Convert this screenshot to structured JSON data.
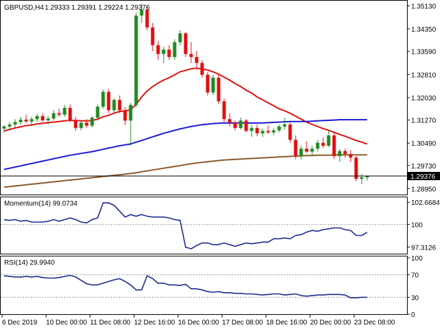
{
  "header": {
    "symbol_tf": "GBPUSD,H4",
    "ohlc": "1.29333 1.29391 1.29224 1.29376"
  },
  "price_axis": {
    "labels": [
      "1.35130",
      "1.34350",
      "1.33590",
      "1.32810",
      "1.32030",
      "1.31270",
      "1.30490",
      "1.29730",
      "1.28950"
    ],
    "current_price": "1.29376"
  },
  "momentum": {
    "title": "Momentum(14) 99.0734",
    "axis_labels": [
      "102.6684",
      "100",
      "97.3126"
    ],
    "levels": [
      100
    ]
  },
  "rsi": {
    "title": "RSI(14) 29.9940",
    "axis_labels": [
      "100",
      "70",
      "30",
      "0"
    ],
    "levels": [
      70,
      30
    ]
  },
  "time_axis": {
    "labels": [
      "6 Dec 2019",
      "10 Dec 00:00",
      "11 Dec 08:00",
      "12 Dec 16:00",
      "16 Dec 00:00",
      "17 Dec 08:00",
      "18 Dec 16:00",
      "20 Dec 00:00",
      "23 Dec 08:00"
    ]
  },
  "colors": {
    "bull": "#1f8a1f",
    "bear": "#e01010",
    "ma_fast": "#e01010",
    "ma_mid": "#1a1ad0",
    "ma_slow": "#8b5a2b",
    "indicator": "#1a2a8c",
    "price_line": "#000000"
  },
  "chart_data": [
    {
      "type": "candlestick",
      "title": "GBPUSD,H4",
      "ylim": [
        1.2875,
        1.3528
      ],
      "current_price": 1.29376,
      "candles": [
        [
          1.3098,
          1.311,
          1.3085,
          1.3105
        ],
        [
          1.3105,
          1.312,
          1.3095,
          1.3112
        ],
        [
          1.3112,
          1.313,
          1.31,
          1.312
        ],
        [
          1.312,
          1.3138,
          1.311,
          1.3128
        ],
        [
          1.3128,
          1.3145,
          1.3118,
          1.3122
        ],
        [
          1.3122,
          1.3138,
          1.311,
          1.313
        ],
        [
          1.313,
          1.3148,
          1.312,
          1.314
        ],
        [
          1.314,
          1.315,
          1.3122,
          1.3126
        ],
        [
          1.3126,
          1.314,
          1.3112,
          1.3132
        ],
        [
          1.3132,
          1.316,
          1.3125,
          1.315
        ],
        [
          1.315,
          1.3165,
          1.3138,
          1.3145
        ],
        [
          1.3145,
          1.3178,
          1.3138,
          1.3168
        ],
        [
          1.3168,
          1.318,
          1.312,
          1.3125
        ],
        [
          1.3125,
          1.3138,
          1.309,
          1.31
        ],
        [
          1.31,
          1.3122,
          1.3092,
          1.3118
        ],
        [
          1.3118,
          1.313,
          1.31,
          1.3108
        ],
        [
          1.3108,
          1.314,
          1.3102,
          1.3135
        ],
        [
          1.3135,
          1.318,
          1.3125,
          1.3172
        ],
        [
          1.3172,
          1.323,
          1.3165,
          1.3222
        ],
        [
          1.3222,
          1.3232,
          1.315,
          1.316
        ],
        [
          1.316,
          1.32,
          1.315,
          1.3195
        ],
        [
          1.3195,
          1.321,
          1.315,
          1.316
        ],
        [
          1.316,
          1.317,
          1.311,
          1.3125
        ],
        [
          1.3125,
          1.3185,
          1.304,
          1.3178
        ],
        [
          1.3178,
          1.349,
          1.317,
          1.348
        ],
        [
          1.348,
          1.352,
          1.3455,
          1.35
        ],
        [
          1.35,
          1.351,
          1.343,
          1.344
        ],
        [
          1.344,
          1.3455,
          1.336,
          1.338
        ],
        [
          1.338,
          1.3395,
          1.333,
          1.335
        ],
        [
          1.335,
          1.3375,
          1.332,
          1.3365
        ],
        [
          1.3365,
          1.338,
          1.333,
          1.334
        ],
        [
          1.334,
          1.34,
          1.333,
          1.339
        ],
        [
          1.339,
          1.343,
          1.338,
          1.342
        ],
        [
          1.342,
          1.3425,
          1.334,
          1.335
        ],
        [
          1.335,
          1.339,
          1.332,
          1.334
        ],
        [
          1.334,
          1.336,
          1.33,
          1.332
        ],
        [
          1.332,
          1.333,
          1.327,
          1.328
        ],
        [
          1.328,
          1.329,
          1.321,
          1.322
        ],
        [
          1.322,
          1.328,
          1.3212,
          1.327
        ],
        [
          1.327,
          1.328,
          1.318,
          1.319
        ],
        [
          1.319,
          1.32,
          1.312,
          1.313
        ],
        [
          1.313,
          1.315,
          1.3105,
          1.3118
        ],
        [
          1.3118,
          1.3125,
          1.3092,
          1.31
        ],
        [
          1.31,
          1.3135,
          1.3095,
          1.3125
        ],
        [
          1.3125,
          1.313,
          1.3085,
          1.309
        ],
        [
          1.309,
          1.311,
          1.307,
          1.31
        ],
        [
          1.31,
          1.3112,
          1.3072,
          1.3082
        ],
        [
          1.3082,
          1.3098,
          1.307,
          1.309
        ],
        [
          1.309,
          1.3108,
          1.308,
          1.3085
        ],
        [
          1.3085,
          1.31,
          1.3075,
          1.3092
        ],
        [
          1.3092,
          1.3112,
          1.3085,
          1.3105
        ],
        [
          1.3105,
          1.3135,
          1.3095,
          1.3112
        ],
        [
          1.3112,
          1.3118,
          1.305,
          1.306
        ],
        [
          1.306,
          1.3075,
          1.2995,
          1.3005
        ],
        [
          1.3005,
          1.304,
          1.2995,
          1.303
        ],
        [
          1.303,
          1.3055,
          1.3015,
          1.302
        ],
        [
          1.302,
          1.304,
          1.3005,
          1.303
        ],
        [
          1.303,
          1.306,
          1.302,
          1.305
        ],
        [
          1.305,
          1.3068,
          1.3032,
          1.304
        ],
        [
          1.304,
          1.309,
          1.3035,
          1.3075
        ],
        [
          1.3075,
          1.3085,
          1.2995,
          1.3005
        ],
        [
          1.3005,
          1.303,
          1.2985,
          1.3022
        ],
        [
          1.3022,
          1.303,
          1.3,
          1.3012
        ],
        [
          1.3012,
          1.3025,
          1.2985,
          1.3
        ],
        [
          1.3,
          1.3005,
          1.292,
          1.2928
        ],
        [
          1.2928,
          1.2945,
          1.291,
          1.2933
        ],
        [
          1.2933,
          1.29391,
          1.29224,
          1.29376
        ]
      ],
      "overlays": [
        {
          "color": "#e01010",
          "values": [
            1.309,
            1.3095,
            1.31,
            1.3104,
            1.3108,
            1.311,
            1.3114,
            1.3116,
            1.3118,
            1.312,
            1.3122,
            1.3124,
            1.3126,
            1.3125,
            1.3124,
            1.3124,
            1.3125,
            1.313,
            1.3138,
            1.3143,
            1.315,
            1.3156,
            1.3158,
            1.3162,
            1.318,
            1.3205,
            1.3225,
            1.324,
            1.3252,
            1.3262,
            1.327,
            1.328,
            1.329,
            1.3295,
            1.33,
            1.3302,
            1.33,
            1.3296,
            1.329,
            1.3282,
            1.3272,
            1.3262,
            1.325,
            1.324,
            1.3228,
            1.3218,
            1.3205,
            1.3195,
            1.3185,
            1.3175,
            1.3165,
            1.3158,
            1.315,
            1.314,
            1.313,
            1.312,
            1.3112,
            1.3105,
            1.3098,
            1.3092,
            1.3085,
            1.3078,
            1.3072,
            1.3065,
            1.3058,
            1.3052,
            1.3046
          ]
        },
        {
          "color": "#1a1ad0",
          "values": [
            1.296,
            1.2964,
            1.2968,
            1.2972,
            1.2976,
            1.298,
            1.2984,
            1.2988,
            1.2992,
            1.2996,
            1.3,
            1.3004,
            1.3008,
            1.3011,
            1.3014,
            1.3017,
            1.302,
            1.3024,
            1.3028,
            1.3032,
            1.3036,
            1.304,
            1.3043,
            1.3046,
            1.3052,
            1.3058,
            1.3064,
            1.307,
            1.3076,
            1.3082,
            1.3087,
            1.3092,
            1.3097,
            1.3101,
            1.3105,
            1.3108,
            1.3111,
            1.3113,
            1.3115,
            1.3116,
            1.3117,
            1.3117,
            1.3117,
            1.3117,
            1.3117,
            1.3117,
            1.3117,
            1.3117,
            1.3118,
            1.3119,
            1.312,
            1.3121,
            1.3122,
            1.3122,
            1.3122,
            1.3122,
            1.3123,
            1.3124,
            1.3125,
            1.3126,
            1.3127,
            1.3128,
            1.3128,
            1.3128,
            1.3128,
            1.3128,
            1.3128
          ]
        },
        {
          "color": "#8b5a2b",
          "values": [
            1.29,
            1.2902,
            1.2904,
            1.2906,
            1.2908,
            1.291,
            1.2912,
            1.2914,
            1.2916,
            1.2918,
            1.292,
            1.2922,
            1.2924,
            1.2926,
            1.2928,
            1.293,
            1.2932,
            1.2934,
            1.2936,
            1.2938,
            1.294,
            1.2942,
            1.2944,
            1.2946,
            1.2949,
            1.2952,
            1.2955,
            1.2958,
            1.2961,
            1.2964,
            1.2967,
            1.297,
            1.2973,
            1.2976,
            1.2979,
            1.2982,
            1.2984,
            1.2986,
            1.2988,
            1.299,
            1.2992,
            1.2993,
            1.2994,
            1.2995,
            1.2996,
            1.2997,
            1.2998,
            1.2999,
            1.3,
            1.3001,
            1.3002,
            1.3003,
            1.3004,
            1.3005,
            1.3006,
            1.3007,
            1.3007,
            1.3008,
            1.3008,
            1.3008,
            1.3009,
            1.3009,
            1.3009,
            1.3009,
            1.3009,
            1.3009,
            1.3009
          ]
        }
      ]
    },
    {
      "type": "line",
      "title": "Momentum(14) 99.0734",
      "ylim": [
        96.6,
        103.1
      ],
      "levels": [
        100
      ],
      "values": [
        100.6,
        100.5,
        100.6,
        100.4,
        100.5,
        100.3,
        100.3,
        100.3,
        100.4,
        100.6,
        100.4,
        100.6,
        100.8,
        100.6,
        100.3,
        100.2,
        100.6,
        100.8,
        102.6,
        102.6,
        102.3,
        101.6,
        100.9,
        101.2,
        101.0,
        101.2,
        101.0,
        100.9,
        100.9,
        100.9,
        100.8,
        100.6,
        100.5,
        97.3,
        97.1,
        97.5,
        97.8,
        97.8,
        97.6,
        97.6,
        97.8,
        97.6,
        97.4,
        97.6,
        97.8,
        97.7,
        97.8,
        97.9,
        97.9,
        98.3,
        98.3,
        98.4,
        98.3,
        98.7,
        98.8,
        99.1,
        99.3,
        99.2,
        99.4,
        99.5,
        99.6,
        99.6,
        99.4,
        99.3,
        98.7,
        98.7,
        99.07
      ]
    },
    {
      "type": "line",
      "title": "RSI(14) 29.9940",
      "ylim": [
        0,
        100
      ],
      "levels": [
        70,
        30
      ],
      "values": [
        68,
        67,
        66,
        66,
        67,
        66,
        67,
        65,
        64,
        64,
        65,
        67,
        69,
        66,
        60,
        54,
        52,
        52,
        55,
        58,
        61,
        63,
        58,
        52,
        43,
        43,
        68,
        63,
        55,
        55,
        52,
        52,
        51,
        53,
        45,
        45,
        43,
        40,
        39,
        40,
        38,
        38,
        37,
        37,
        36,
        36,
        35,
        34,
        35,
        36,
        36,
        34,
        35,
        36,
        33,
        32,
        33,
        34,
        34,
        35,
        35,
        35,
        34,
        29,
        29,
        30,
        30
      ]
    }
  ]
}
